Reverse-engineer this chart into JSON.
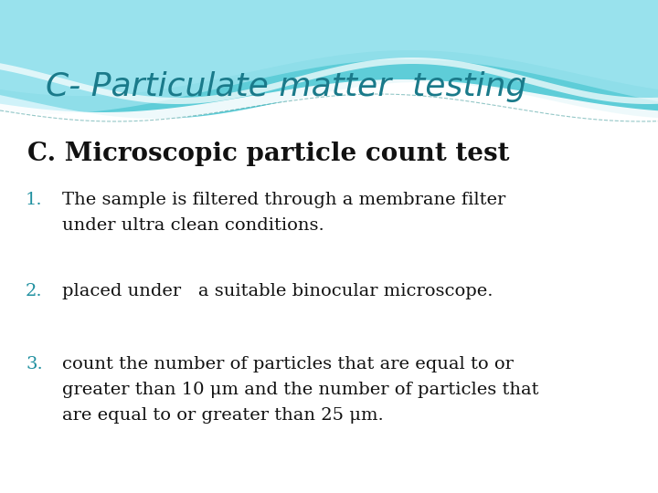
{
  "title": "C- Particulate matter  testing",
  "title_color": "#1a7a8a",
  "subtitle": "C. Microscopic particle count test",
  "subtitle_color": "#111111",
  "items": [
    {
      "number": "1.",
      "number_color": "#2090a0",
      "lines": [
        "The sample is filtered through a membrane filter",
        "under ultra clean conditions."
      ],
      "text_color": "#111111"
    },
    {
      "number": "2.",
      "number_color": "#2090a0",
      "lines": [
        "placed under   a suitable binocular microscope."
      ],
      "text_color": "#111111"
    },
    {
      "number": "3.",
      "number_color": "#2090a0",
      "lines": [
        "count the number of particles that are equal to or",
        "greater than 10 μm and the number of particles that",
        "are equal to or greater than 25 μm."
      ],
      "text_color": "#111111"
    }
  ],
  "bg_color": "#ffffff",
  "title_fontsize": 26,
  "subtitle_fontsize": 20,
  "item_fontsize": 14
}
